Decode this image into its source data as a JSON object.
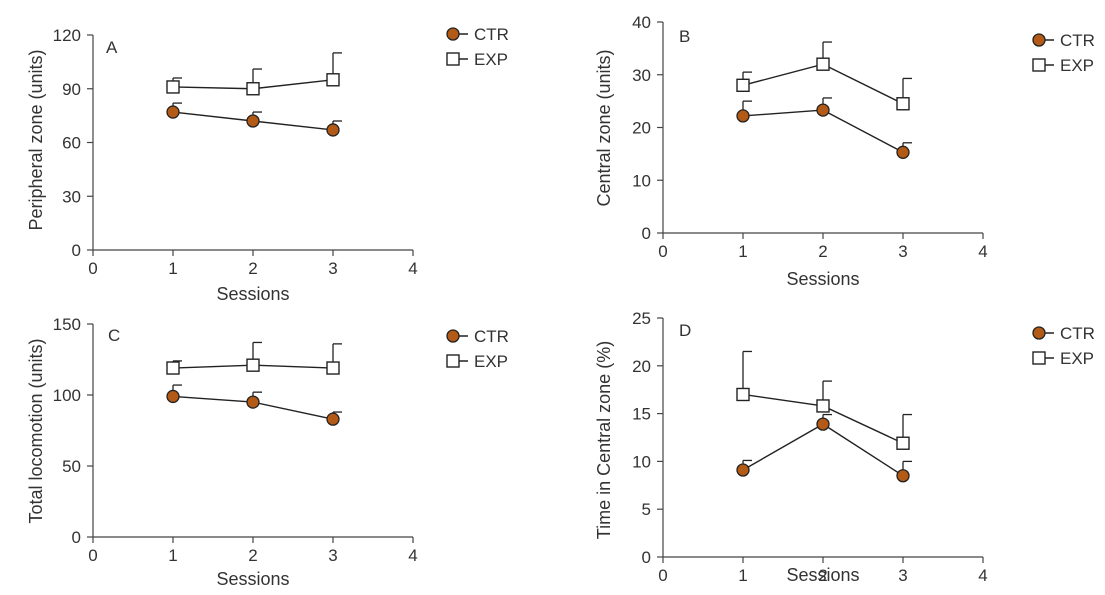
{
  "colors": {
    "ctr": "#b35a16",
    "exp": "#ffffff",
    "stroke": "#222222"
  },
  "chart_data": [
    {
      "type": "line",
      "letter": "A",
      "xlabel": "Sessions",
      "ylabel": "Peripheral zone (units)",
      "xlim": [
        0,
        4
      ],
      "ylim": [
        0,
        120
      ],
      "xticks": [
        "0",
        "1",
        "2",
        "3",
        "4"
      ],
      "yticks": [
        "0",
        "30",
        "60",
        "90",
        "120"
      ],
      "legend_position": "top-right",
      "x": [
        1,
        2,
        3
      ],
      "series": [
        {
          "name": "CTR",
          "marker": "circle",
          "values": [
            77,
            72,
            67
          ],
          "error": [
            5,
            5,
            5
          ]
        },
        {
          "name": "EXP",
          "marker": "square",
          "values": [
            91,
            90,
            95
          ],
          "error": [
            5,
            11,
            15
          ]
        }
      ]
    },
    {
      "type": "line",
      "letter": "B",
      "xlabel": "Sessions",
      "ylabel": "Central zone (units)",
      "xlim": [
        0,
        4
      ],
      "ylim": [
        0,
        40
      ],
      "xticks": [
        "0",
        "1",
        "2",
        "3",
        "4"
      ],
      "yticks": [
        "0",
        "10",
        "20",
        "30",
        "40"
      ],
      "legend_position": "top-right",
      "x": [
        1,
        2,
        3
      ],
      "series": [
        {
          "name": "CTR",
          "marker": "circle",
          "values": [
            22.2,
            23.3,
            15.3
          ],
          "error": [
            2.8,
            2.3,
            1.8
          ]
        },
        {
          "name": "EXP",
          "marker": "square",
          "values": [
            28,
            32,
            24.5
          ],
          "error": [
            2.5,
            4.2,
            4.8
          ]
        }
      ]
    },
    {
      "type": "line",
      "letter": "C",
      "xlabel": "Sessions",
      "ylabel": "Total locomotion (units)",
      "xlim": [
        0,
        4
      ],
      "ylim": [
        0,
        150
      ],
      "xticks": [
        "0",
        "1",
        "2",
        "3",
        "4"
      ],
      "yticks": [
        "0",
        "50",
        "100",
        "150"
      ],
      "legend_position": "top-right",
      "x": [
        1,
        2,
        3
      ],
      "series": [
        {
          "name": "CTR",
          "marker": "circle",
          "values": [
            99,
            95,
            83
          ],
          "error": [
            8,
            7,
            5
          ]
        },
        {
          "name": "EXP",
          "marker": "square",
          "values": [
            119,
            121,
            119
          ],
          "error": [
            5,
            16,
            17
          ]
        }
      ]
    },
    {
      "type": "line",
      "letter": "D",
      "xlabel": "Sessions",
      "ylabel": "Time in Central zone (%)",
      "xlim": [
        0,
        4
      ],
      "ylim": [
        0,
        25
      ],
      "xticks": [
        "0",
        "1",
        "2",
        "3",
        "4"
      ],
      "yticks": [
        "0",
        "5",
        "10",
        "15",
        "20",
        "25"
      ],
      "legend_position": "top-right",
      "x": [
        1,
        2,
        3
      ],
      "series": [
        {
          "name": "CTR",
          "marker": "circle",
          "values": [
            9.1,
            13.9,
            8.5
          ],
          "error": [
            1.0,
            1.0,
            1.5
          ]
        },
        {
          "name": "EXP",
          "marker": "square",
          "values": [
            17,
            15.8,
            11.9
          ],
          "error": [
            4.5,
            2.6,
            3.0
          ]
        }
      ]
    }
  ]
}
